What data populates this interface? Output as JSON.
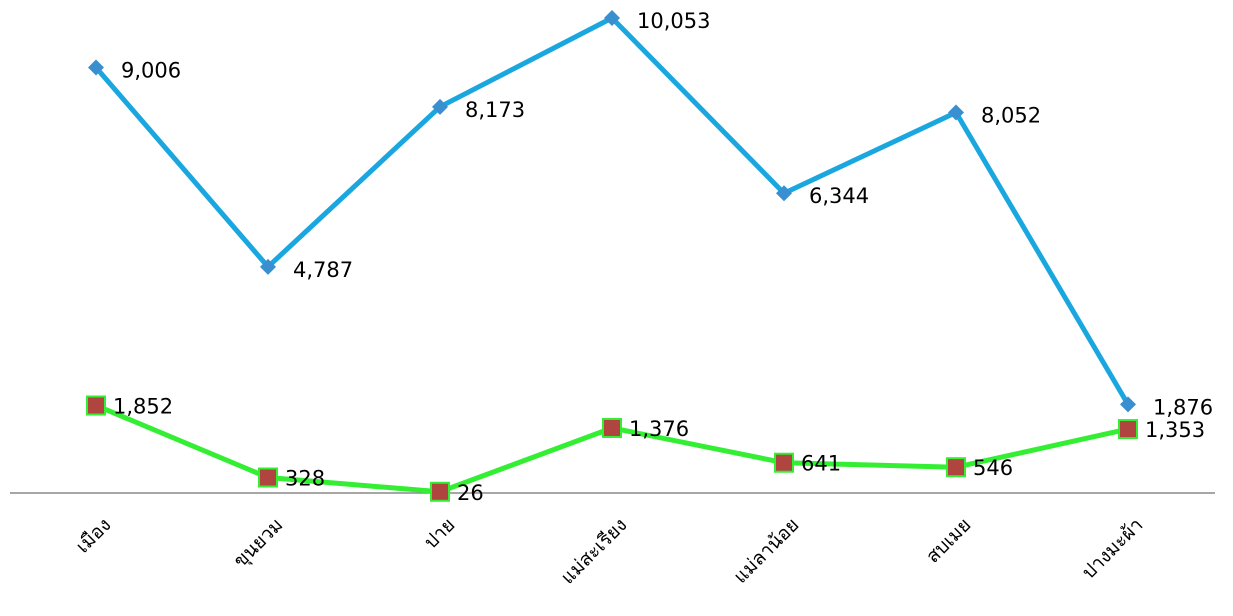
{
  "chart_data": {
    "type": "line",
    "categories": [
      "เมือง",
      "ขุนยวม",
      "ปาย",
      "แม่สะเรียง",
      "แม่ลาน้อย",
      "สบเมย",
      "ปางมะผ้า"
    ],
    "series": [
      {
        "color": "#1aa7e0",
        "marker": "diamond",
        "marker_color": "#3a8fd0",
        "values": [
          9006,
          4787,
          8173,
          10053,
          6344,
          8052,
          1876
        ],
        "value_labels": [
          "9,006",
          "4,787",
          "8,173",
          "10,053",
          "6,344",
          "8,052",
          "1,876"
        ]
      },
      {
        "color": "#33ee33",
        "marker": "square",
        "marker_color": "#b0453f",
        "values": [
          1852,
          328,
          26,
          1376,
          641,
          546,
          1353
        ],
        "value_labels": [
          "1,852",
          "328",
          "26",
          "1,376",
          "641",
          "546",
          "1,353"
        ]
      }
    ],
    "ylim": [
      0,
      10000
    ]
  }
}
